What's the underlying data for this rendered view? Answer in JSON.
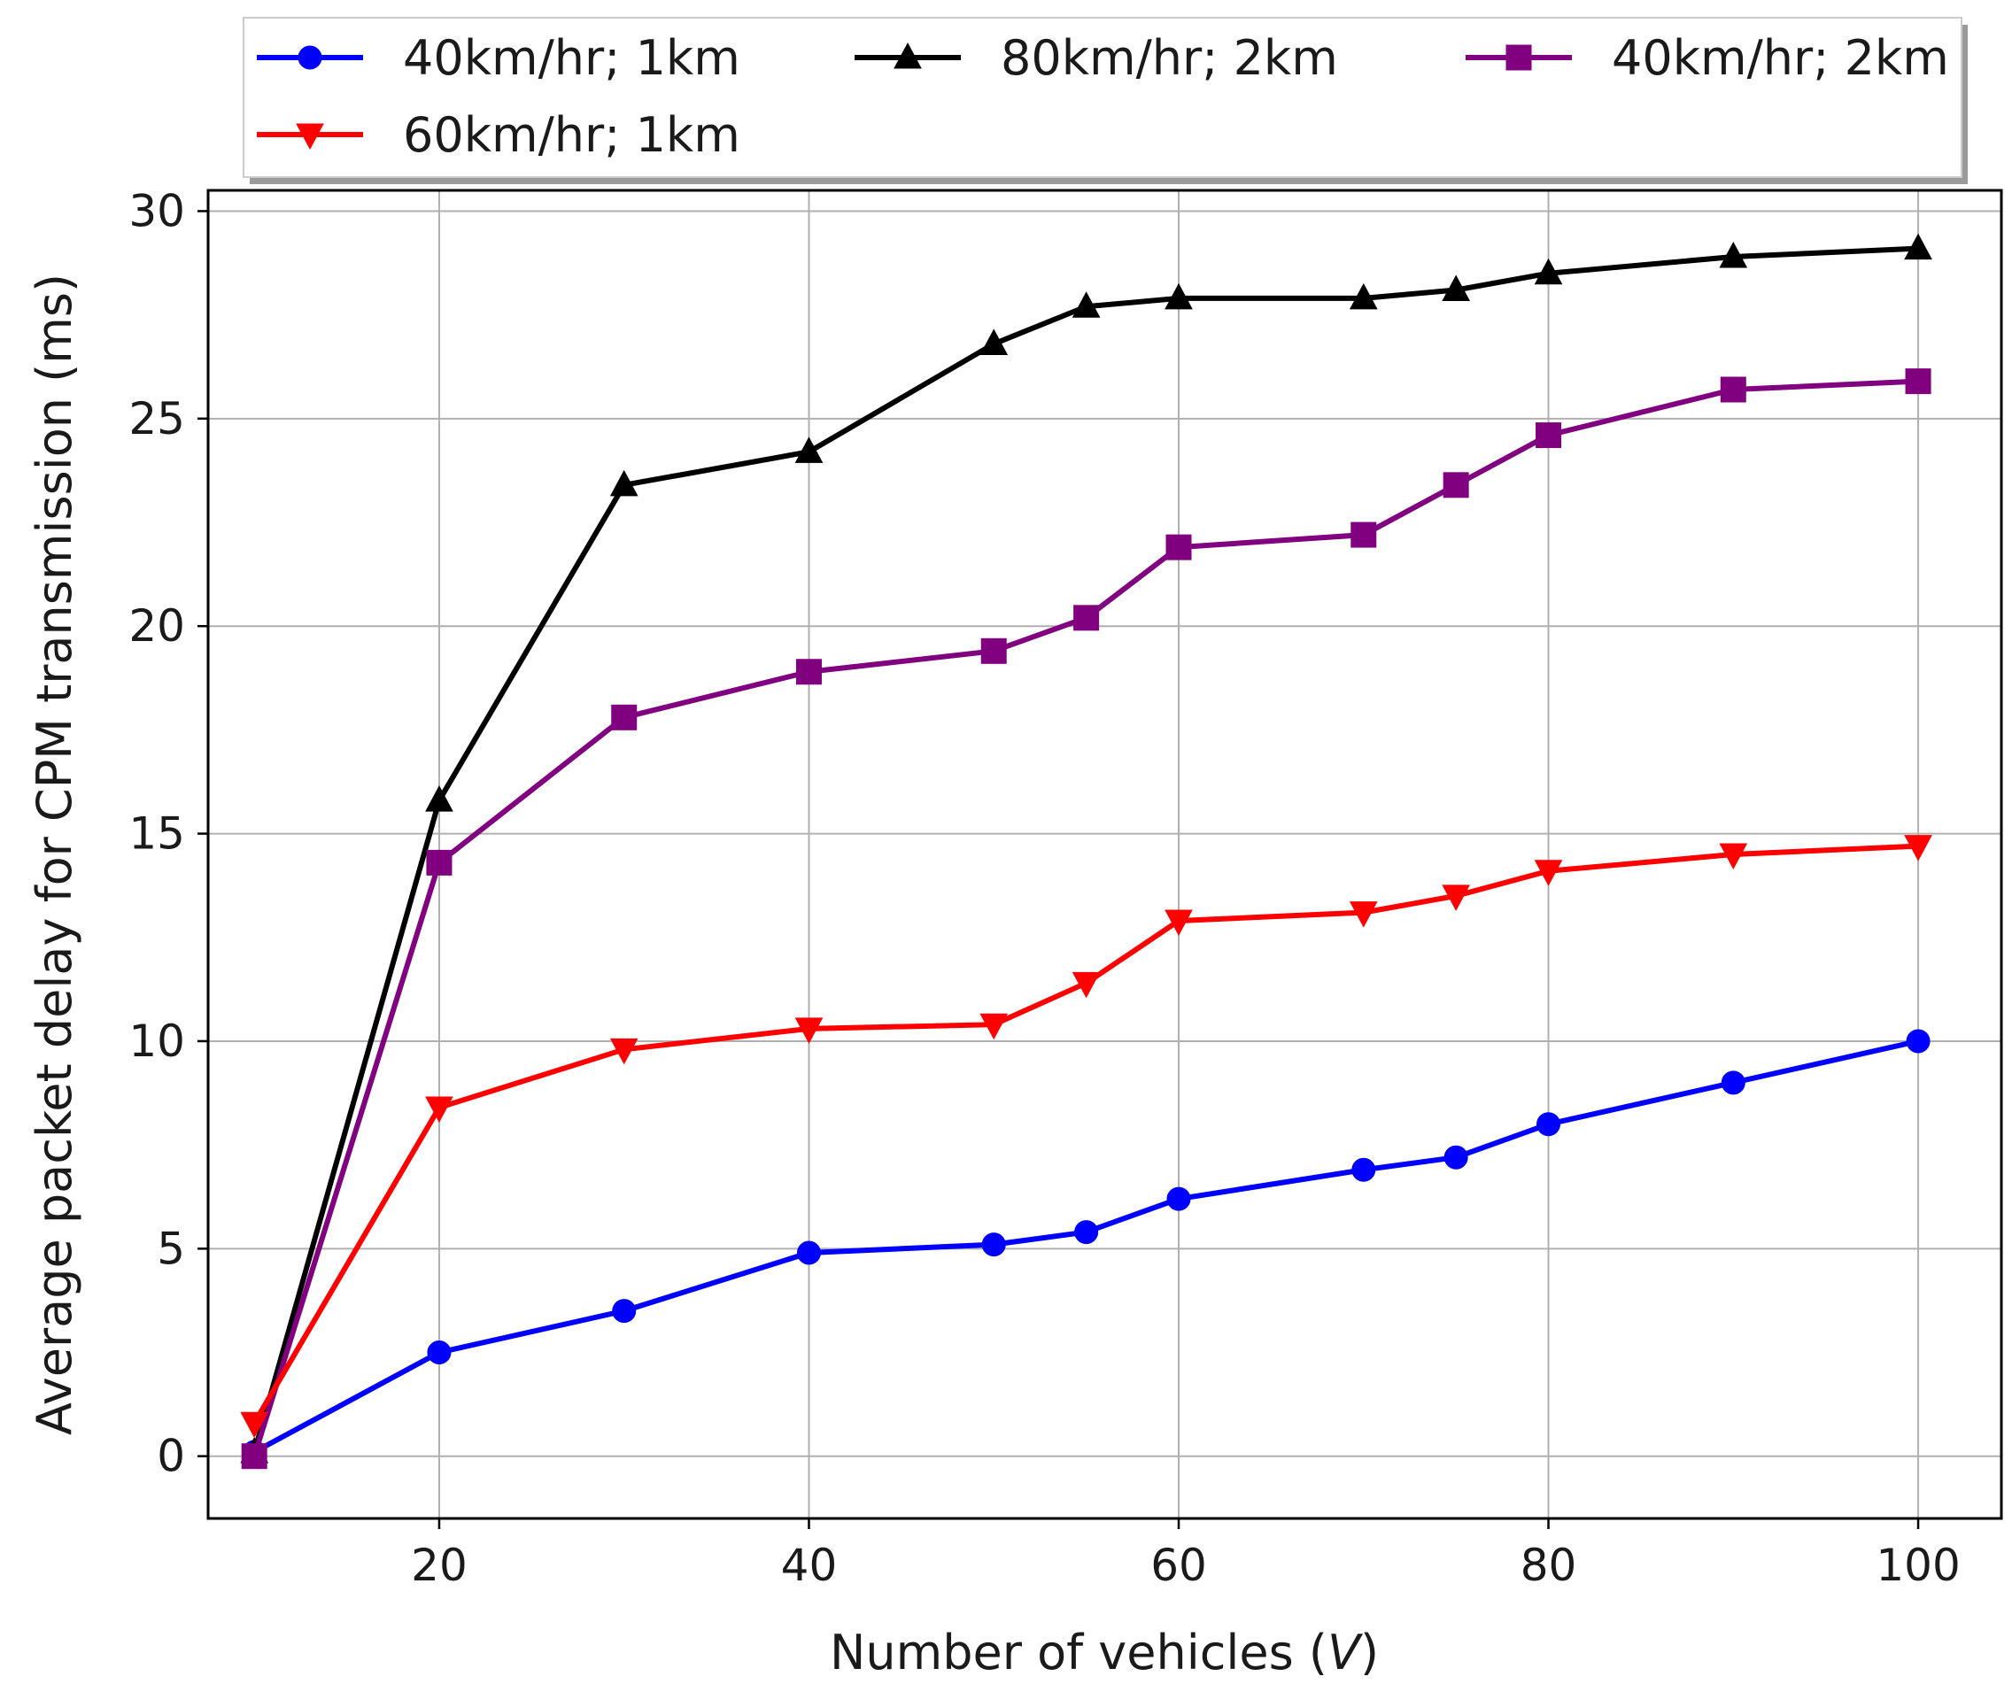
{
  "chart_data": {
    "type": "line",
    "title": "",
    "xlabel": "Number of vehicles (",
    "xlabel_var": "V",
    "xlabel_suffix": ")",
    "ylabel": "Average packet delay for CPM transmission (ms)",
    "xlim": [
      7.5,
      104.5
    ],
    "ylim": [
      -1.5,
      30.5
    ],
    "xticks": [
      20,
      40,
      60,
      80,
      100
    ],
    "yticks": [
      0,
      5,
      10,
      15,
      20,
      25,
      30
    ],
    "grid": true,
    "legend_position": "top",
    "x": [
      10,
      20,
      30,
      40,
      50,
      55,
      60,
      70,
      75,
      80,
      90,
      100
    ],
    "series": [
      {
        "name": "40km/hr; 1km",
        "color": "#0000ff",
        "marker": "circle",
        "values": [
          0.1,
          2.5,
          3.5,
          4.9,
          5.1,
          5.4,
          6.2,
          6.9,
          7.2,
          8.0,
          9.0,
          10.0
        ]
      },
      {
        "name": "80km/hr; 2km",
        "color": "#000000",
        "marker": "triangle-up",
        "values": [
          0.1,
          15.8,
          23.4,
          24.2,
          26.8,
          27.7,
          27.9,
          27.9,
          28.1,
          28.5,
          28.9,
          29.1
        ]
      },
      {
        "name": "40km/hr; 2km",
        "color": "#800080",
        "marker": "square",
        "values": [
          0.0,
          14.3,
          17.8,
          18.9,
          19.4,
          20.2,
          21.9,
          22.2,
          23.4,
          24.6,
          25.7,
          25.9
        ]
      },
      {
        "name": "60km/hr; 1km",
        "color": "#ff0000",
        "marker": "triangle-down",
        "values": [
          0.8,
          8.4,
          9.8,
          10.3,
          10.4,
          11.4,
          12.9,
          13.1,
          13.5,
          14.1,
          14.5,
          14.7
        ]
      }
    ]
  }
}
